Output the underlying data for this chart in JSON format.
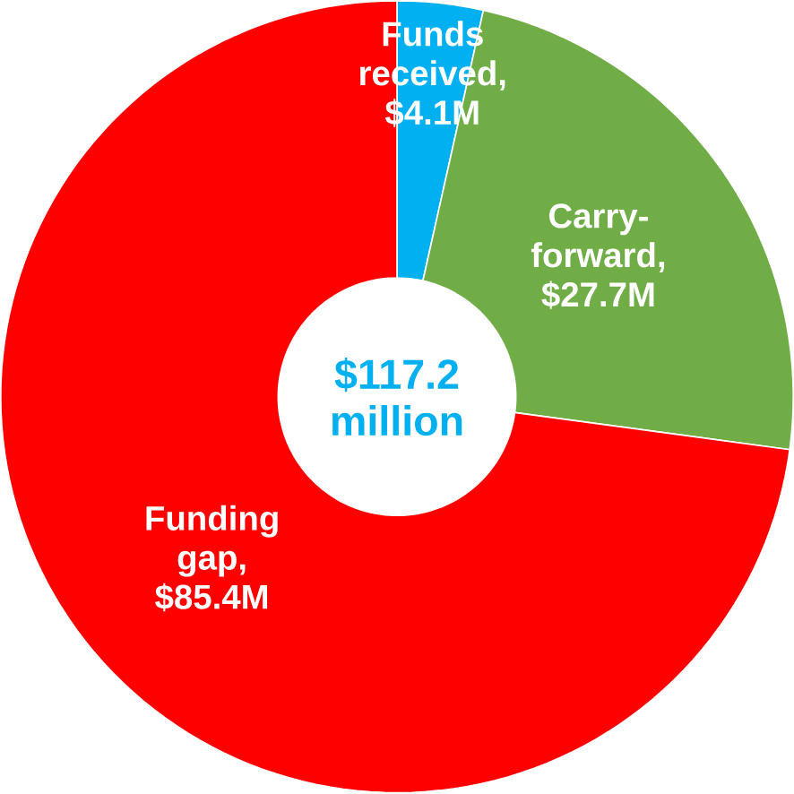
{
  "chart_data": {
    "type": "donut",
    "categories": [
      "Funds received, $4.1M",
      "Carry-forward, $27.7M",
      "Funding gap, $85.4M"
    ],
    "values": [
      4.1,
      27.7,
      85.4
    ],
    "colors": [
      "#00b0f0",
      "#70ad47",
      "#ff0000"
    ],
    "annotations": [
      "$117.2 million"
    ]
  }
}
